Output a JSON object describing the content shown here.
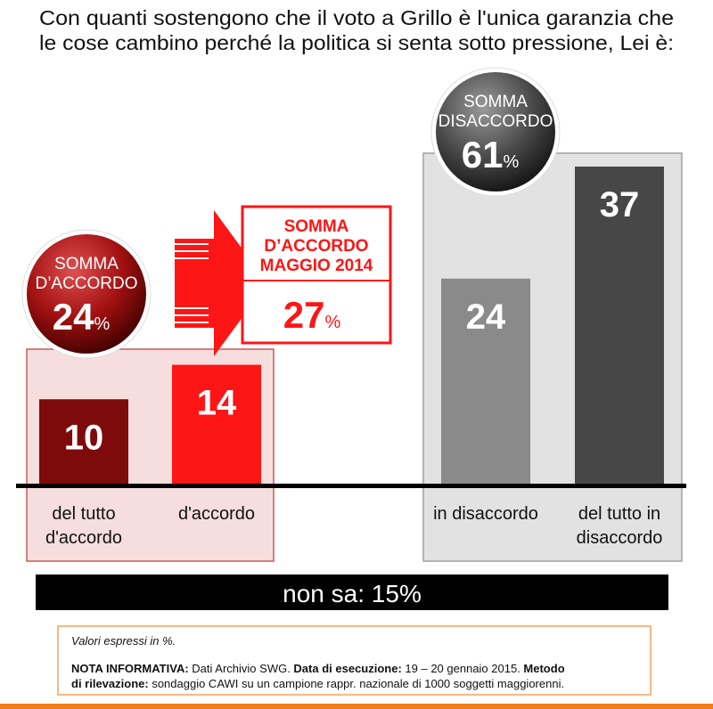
{
  "chart_data": {
    "type": "bar",
    "title_lines": [
      "Con quanti sostengono che il voto a Grillo è l'unica garanzia che",
      "le cose cambino perché la politica si senta sotto pressione, Lei è:"
    ],
    "categories": [
      [
        "del tutto",
        "d'accordo"
      ],
      [
        "d'accordo"
      ],
      [
        "in disaccordo"
      ],
      [
        "del tutto in",
        "disaccordo"
      ]
    ],
    "values": [
      10,
      14,
      24,
      37
    ],
    "colors": [
      "#7d0b0b",
      "#fe1515",
      "#8a8a8a",
      "#474747"
    ],
    "ylim": [
      0,
      40
    ],
    "sum_agree": {
      "label": [
        "SOMMA",
        "D’ACCORDO"
      ],
      "value": 24,
      "unit": "%"
    },
    "sum_disagree": {
      "label": [
        "SOMMA",
        "DISACCORDO"
      ],
      "value": 61,
      "unit": "%"
    },
    "sum_agree_previous": {
      "label": [
        "SOMMA",
        "D’ACCORDO",
        "MAGGIO 2014"
      ],
      "value": 27,
      "unit": "%"
    },
    "dont_know": {
      "label": "non sa:",
      "value": 15,
      "unit": "%"
    },
    "note_intro": "Valori espressi in %.",
    "note_lines": [
      [
        {
          "text": "NOTA INFORMATIVA:",
          "bold": true
        },
        {
          "text": " Dati Archivio SWG. ",
          "bold": false
        },
        {
          "text": "Data di esecuzione:",
          "bold": true
        },
        {
          "text": " 19 – 20 gennaio 2015. ",
          "bold": false
        },
        {
          "text": "Metodo",
          "bold": true
        }
      ],
      [
        {
          "text": "di rilevazione:",
          "bold": true
        },
        {
          "text": " sondaggio CAWI su un campione rappr. nazionale di 1000 soggetti maggiorenni.",
          "bold": false
        }
      ]
    ]
  }
}
